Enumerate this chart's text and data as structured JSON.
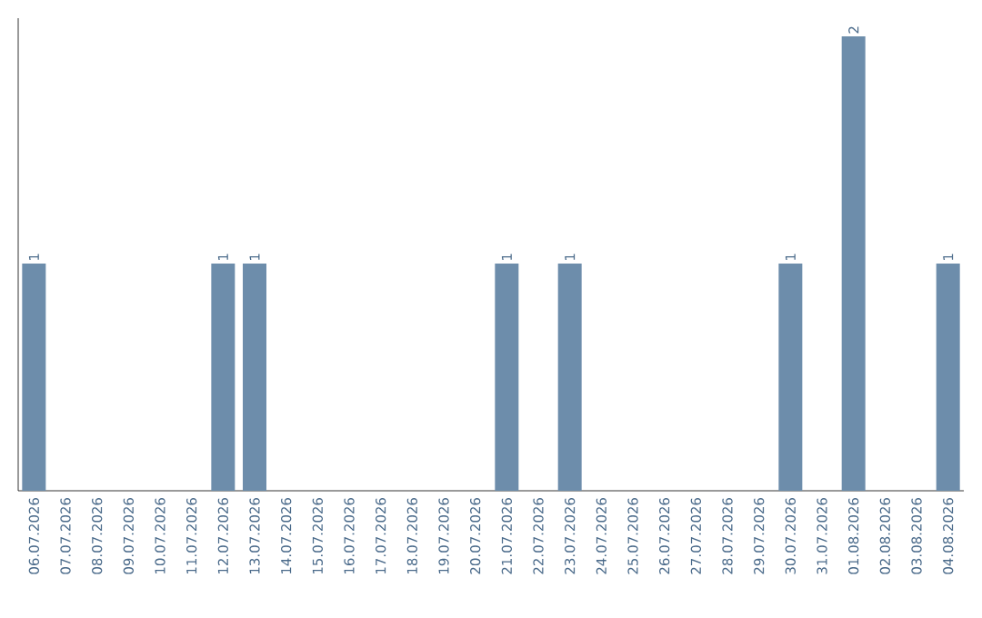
{
  "chart_data": {
    "type": "bar",
    "categories": [
      "06.07.2026",
      "07.07.2026",
      "08.07.2026",
      "09.07.2026",
      "10.07.2026",
      "11.07.2026",
      "12.07.2026",
      "13.07.2026",
      "14.07.2026",
      "15.07.2026",
      "16.07.2026",
      "17.07.2026",
      "18.07.2026",
      "19.07.2026",
      "20.07.2026",
      "21.07.2026",
      "22.07.2026",
      "23.07.2026",
      "24.07.2026",
      "25.07.2026",
      "26.07.2026",
      "27.07.2026",
      "28.07.2026",
      "29.07.2026",
      "30.07.2026",
      "31.07.2026",
      "01.08.2026",
      "02.08.2026",
      "03.08.2026",
      "04.08.2026"
    ],
    "values": [
      1,
      0,
      0,
      0,
      0,
      0,
      1,
      1,
      0,
      0,
      0,
      0,
      0,
      0,
      0,
      1,
      0,
      1,
      0,
      0,
      0,
      0,
      0,
      0,
      1,
      0,
      2,
      0,
      0,
      1
    ],
    "value_labels": [
      "1",
      null,
      null,
      null,
      null,
      null,
      "1",
      "1",
      null,
      null,
      null,
      null,
      null,
      null,
      null,
      "1",
      null,
      "1",
      null,
      null,
      null,
      null,
      null,
      null,
      "1",
      null,
      "2",
      null,
      null,
      "1"
    ],
    "color": "#6d8dab"
  }
}
